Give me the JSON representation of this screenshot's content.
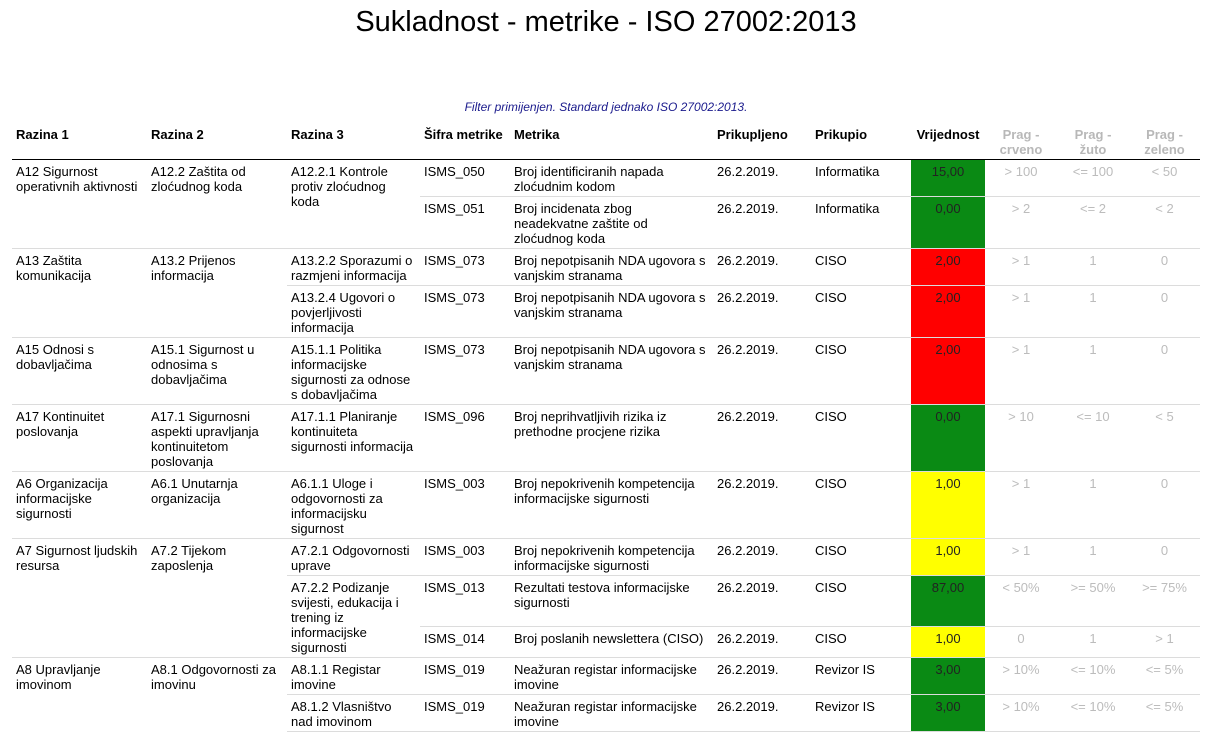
{
  "title": "Sukladnost - metrike - ISO 27002:2013",
  "filter_note": "Filter primijenjen. Standard jednako ISO 27002:2013.",
  "headers": {
    "razina1": "Razina 1",
    "razina2": "Razina 2",
    "razina3": "Razina 3",
    "sifra": "Šifra metrike",
    "metrika": "Metrika",
    "prikupljeno": "Prikupljeno",
    "prikupio": "Prikupio",
    "vrijednost": "Vrijednost",
    "prag_crveno": "Prag - crveno",
    "prag_zuto": "Prag - žuto",
    "prag_zeleno": "Prag - zeleno"
  },
  "colors": {
    "green": "#0a8a14",
    "red": "#ff0000",
    "yellow": "#ffff00"
  },
  "rows": [
    {
      "r1": "A12 Sigurnost operativnih aktivnosti",
      "r1span": 2,
      "r2": "A12.2 Zaštita od zloćudnog koda",
      "r2span": 2,
      "r3": "A12.2.1 Kontrole protiv zloćudnog koda",
      "r3span": 2,
      "sifra": "ISMS_050",
      "metrika": "Broj identificiranih napada zloćudnim kodom",
      "datum": "26.2.2019.",
      "prikupio": "Informatika",
      "vrijednost": "15,00",
      "boja": "green",
      "crveno": "> 100",
      "zuto": "<= 100",
      "zeleno": "< 50"
    },
    {
      "sifra": "ISMS_051",
      "metrika": "Broj incidenata zbog neadekvatne zaštite od zloćudnog koda",
      "datum": "26.2.2019.",
      "prikupio": "Informatika",
      "vrijednost": "0,00",
      "boja": "green",
      "crveno": "> 2",
      "zuto": "<= 2",
      "zeleno": "< 2"
    },
    {
      "r1": "A13 Zaštita komunikacija",
      "r1span": 2,
      "r2": "A13.2 Prijenos informacija",
      "r2span": 2,
      "r3": "A13.2.2 Sporazumi o razmjeni informacija",
      "r3span": 1,
      "sifra": "ISMS_073",
      "metrika": "Broj nepotpisanih NDA ugovora s vanjskim stranama",
      "datum": "26.2.2019.",
      "prikupio": "CISO",
      "vrijednost": "2,00",
      "boja": "red",
      "crveno": "> 1",
      "zuto": "1",
      "zeleno": "0"
    },
    {
      "r3": "A13.2.4 Ugovori o povjerljivosti informacija",
      "r3span": 1,
      "sifra": "ISMS_073",
      "metrika": "Broj nepotpisanih NDA ugovora s vanjskim stranama",
      "datum": "26.2.2019.",
      "prikupio": "CISO",
      "vrijednost": "2,00",
      "boja": "red",
      "crveno": "> 1",
      "zuto": "1",
      "zeleno": "0"
    },
    {
      "r1": "A15 Odnosi s dobavljačima",
      "r1span": 1,
      "r2": "A15.1 Sigurnost u odnosima s dobavljačima",
      "r2span": 1,
      "r3": "A15.1.1 Politika informacijske sigurnosti za odnose s dobavljačima",
      "r3span": 1,
      "sifra": "ISMS_073",
      "metrika": "Broj nepotpisanih NDA ugovora s vanjskim stranama",
      "datum": "26.2.2019.",
      "prikupio": "CISO",
      "vrijednost": "2,00",
      "boja": "red",
      "crveno": "> 1",
      "zuto": "1",
      "zeleno": "0"
    },
    {
      "r1": "A17 Kontinuitet poslovanja",
      "r1span": 1,
      "r2": "A17.1 Sigurnosni aspekti upravljanja kontinuitetom poslovanja",
      "r2span": 1,
      "r3": "A17.1.1 Planiranje kontinuiteta sigurnosti informacija",
      "r3span": 1,
      "sifra": "ISMS_096",
      "metrika": "Broj neprihvatljivih rizika iz prethodne procjene rizika",
      "datum": "26.2.2019.",
      "prikupio": "CISO",
      "vrijednost": "0,00",
      "boja": "green",
      "crveno": "> 10",
      "zuto": "<= 10",
      "zeleno": "< 5"
    },
    {
      "r1": "A6 Organizacija informacijske sigurnosti",
      "r1span": 1,
      "r2": "A6.1 Unutarnja organizacija",
      "r2span": 1,
      "r3": "A6.1.1 Uloge i odgovornosti za informacijsku sigurnost",
      "r3span": 1,
      "sifra": "ISMS_003",
      "metrika": "Broj nepokrivenih kompetencija informacijske sigurnosti",
      "datum": "26.2.2019.",
      "prikupio": "CISO",
      "vrijednost": "1,00",
      "boja": "yellow",
      "crveno": "> 1",
      "zuto": "1",
      "zeleno": "0"
    },
    {
      "r1": "A7 Sigurnost ljudskih resursa",
      "r1span": 3,
      "r2": "A7.2 Tijekom zaposlenja",
      "r2span": 3,
      "r3": "A7.2.1 Odgovornosti uprave",
      "r3span": 1,
      "sifra": "ISMS_003",
      "metrika": "Broj nepokrivenih kompetencija informacijske sigurnosti",
      "datum": "26.2.2019.",
      "prikupio": "CISO",
      "vrijednost": "1,00",
      "boja": "yellow",
      "crveno": "> 1",
      "zuto": "1",
      "zeleno": "0"
    },
    {
      "r3": "A7.2.2 Podizanje svijesti, edukacija i trening iz informacijske sigurnosti",
      "r3span": 2,
      "sifra": "ISMS_013",
      "metrika": "Rezultati testova informacijske sigurnosti",
      "datum": "26.2.2019.",
      "prikupio": "CISO",
      "vrijednost": "87,00",
      "boja": "green",
      "crveno": "< 50%",
      "zuto": ">= 50%",
      "zeleno": ">= 75%"
    },
    {
      "sifra": "ISMS_014",
      "metrika": "Broj poslanih newslettera (CISO)",
      "datum": "26.2.2019.",
      "prikupio": "CISO",
      "vrijednost": "1,00",
      "boja": "yellow",
      "crveno": "0",
      "zuto": "1",
      "zeleno": "> 1"
    },
    {
      "r1": "A8 Upravljanje imovinom",
      "r1span": 2,
      "r2": "A8.1 Odgovornosti za imovinu",
      "r2span": 2,
      "r3": "A8.1.1 Registar imovine",
      "r3span": 1,
      "sifra": "ISMS_019",
      "metrika": "Neažuran registar informacijske imovine",
      "datum": "26.2.2019.",
      "prikupio": "Revizor IS",
      "vrijednost": "3,00",
      "boja": "green",
      "crveno": "> 10%",
      "zuto": "<= 10%",
      "zeleno": "<= 5%"
    },
    {
      "r3": "A8.1.2 Vlasništvo nad imovinom",
      "r3span": 1,
      "sifra": "ISMS_019",
      "metrika": "Neažuran registar informacijske imovine",
      "datum": "26.2.2019.",
      "prikupio": "Revizor IS",
      "vrijednost": "3,00",
      "boja": "green",
      "crveno": "> 10%",
      "zuto": "<= 10%",
      "zeleno": "<= 5%"
    }
  ]
}
